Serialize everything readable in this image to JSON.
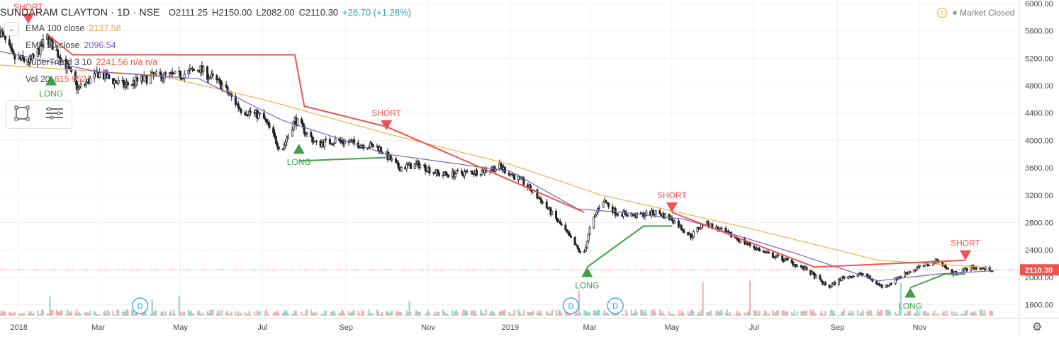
{
  "header": {
    "symbol": "SUNDARAM CLAYTON · 1D · NSE",
    "open": "O2111.25",
    "high": "H2150.00",
    "low": "L2082.00",
    "close": "C2110.30",
    "change": "+26.70 (+1.28%)"
  },
  "indicators": [
    {
      "label": "EMA 100 close",
      "value": "2137.58",
      "color": "#e8a33d"
    },
    {
      "label": "EMA 50 close",
      "value": "2096.54",
      "color": "#7b5fc2"
    },
    {
      "label": "SuperTrend 3 10",
      "value": "2241.56  n/a  n/a",
      "color": "#ef5350"
    },
    {
      "label": "Vol 20",
      "value": "615  952",
      "color": "#ef5350"
    }
  ],
  "status": {
    "market": "Market Closed",
    "warning": "!"
  },
  "icons": {
    "settings": "gear-icon",
    "collapse": "chevron-down-icon",
    "rectangle": "rectangle-tool-icon",
    "menu": "menu-lines-icon"
  },
  "colors": {
    "up": "#26a69a",
    "down": "#ef5350",
    "candle": "#222222",
    "supertrend_up": "#43a047",
    "supertrend_down": "#ef5350",
    "ema50": "#7b5fc2",
    "ema100": "#f0b04a",
    "price_line": "#ef5350"
  },
  "chart_data": {
    "type": "candlestick",
    "title": "SUNDARAM CLAYTON · 1D · NSE",
    "y_axis": {
      "range": [
        1400,
        6050
      ],
      "ticks": [
        "6000.00",
        "5600.00",
        "5200.00",
        "4800.00",
        "4400.00",
        "4000.00",
        "3600.00",
        "3200.00",
        "2800.00",
        "2400.00",
        "2000.00",
        "1600.00"
      ]
    },
    "x_axis": {
      "range": [
        "2017-12-18",
        "2020-01-14"
      ],
      "tick_labels": [
        {
          "date": "2018-01-01",
          "label": "2018"
        },
        {
          "date": "2018-03-01",
          "label": "Mar"
        },
        {
          "date": "2018-05-01",
          "label": "May"
        },
        {
          "date": "2018-07-01",
          "label": "Jul"
        },
        {
          "date": "2018-09-01",
          "label": "Sep"
        },
        {
          "date": "2018-11-01",
          "label": "Nov"
        },
        {
          "date": "2019-01-01",
          "label": "2019"
        },
        {
          "date": "2019-03-01",
          "label": "Mar"
        },
        {
          "date": "2019-05-01",
          "label": "May"
        },
        {
          "date": "2019-07-01",
          "label": "Jul"
        },
        {
          "date": "2019-09-01",
          "label": "Sep"
        },
        {
          "date": "2019-11-01",
          "label": "Nov"
        }
      ]
    },
    "last_price": {
      "value": 2110.3,
      "label": "2110.30"
    },
    "price_path": [
      [
        "2017-12-18",
        5600
      ],
      [
        "2017-12-28",
        5200
      ],
      [
        "2018-01-10",
        5150
      ],
      [
        "2018-01-22",
        5500
      ],
      [
        "2018-02-05",
        5100
      ],
      [
        "2018-02-14",
        4750
      ],
      [
        "2018-03-01",
        4980
      ],
      [
        "2018-03-20",
        4800
      ],
      [
        "2018-04-10",
        4930
      ],
      [
        "2018-05-01",
        4950
      ],
      [
        "2018-05-15",
        5050
      ],
      [
        "2018-06-01",
        4800
      ],
      [
        "2018-06-15",
        4450
      ],
      [
        "2018-07-01",
        4350
      ],
      [
        "2018-07-15",
        3850
      ],
      [
        "2018-07-25",
        4300
      ],
      [
        "2018-08-10",
        3950
      ],
      [
        "2018-08-25",
        4000
      ],
      [
        "2018-09-10",
        3950
      ],
      [
        "2018-09-25",
        3900
      ],
      [
        "2018-10-10",
        3600
      ],
      [
        "2018-10-25",
        3650
      ],
      [
        "2018-11-10",
        3500
      ],
      [
        "2018-11-25",
        3520
      ],
      [
        "2018-12-10",
        3550
      ],
      [
        "2018-12-24",
        3620
      ],
      [
        "2019-01-10",
        3400
      ],
      [
        "2019-01-25",
        3100
      ],
      [
        "2019-02-10",
        2700
      ],
      [
        "2019-02-24",
        2300
      ],
      [
        "2019-03-01",
        2700
      ],
      [
        "2019-03-10",
        3150
      ],
      [
        "2019-03-20",
        2950
      ],
      [
        "2019-04-05",
        2900
      ],
      [
        "2019-04-20",
        2950
      ],
      [
        "2019-05-01",
        2850
      ],
      [
        "2019-05-15",
        2600
      ],
      [
        "2019-05-25",
        2800
      ],
      [
        "2019-06-10",
        2650
      ],
      [
        "2019-06-25",
        2500
      ],
      [
        "2019-07-10",
        2350
      ],
      [
        "2019-07-25",
        2250
      ],
      [
        "2019-08-10",
        2100
      ],
      [
        "2019-08-25",
        1850
      ],
      [
        "2019-09-05",
        2000
      ],
      [
        "2019-09-20",
        2050
      ],
      [
        "2019-10-05",
        1850
      ],
      [
        "2019-10-20",
        2050
      ],
      [
        "2019-11-01",
        2150
      ],
      [
        "2019-11-15",
        2250
      ],
      [
        "2019-11-25",
        2050
      ],
      [
        "2019-12-10",
        2150
      ],
      [
        "2019-12-25",
        2110
      ]
    ],
    "series": [
      {
        "name": "EMA 100 close",
        "points": [
          [
            "2017-12-18",
            5100
          ],
          [
            "2018-04-15",
            4950
          ],
          [
            "2018-07-01",
            4600
          ],
          [
            "2018-10-01",
            4100
          ],
          [
            "2019-01-01",
            3650
          ],
          [
            "2019-03-10",
            3200
          ],
          [
            "2019-07-01",
            2700
          ],
          [
            "2019-10-01",
            2250
          ],
          [
            "2019-12-25",
            2140
          ]
        ]
      },
      {
        "name": "EMA 50 close",
        "points": [
          [
            "2017-12-18",
            5300
          ],
          [
            "2018-03-01",
            5000
          ],
          [
            "2018-05-15",
            4900
          ],
          [
            "2018-07-15",
            4300
          ],
          [
            "2018-10-01",
            3800
          ],
          [
            "2019-01-01",
            3550
          ],
          [
            "2019-02-20",
            3000
          ],
          [
            "2019-03-25",
            2950
          ],
          [
            "2019-05-10",
            2850
          ],
          [
            "2019-08-01",
            2350
          ],
          [
            "2019-10-01",
            1950
          ],
          [
            "2019-11-15",
            2050
          ],
          [
            "2019-12-25",
            2095
          ]
        ]
      },
      {
        "name": "SuperTrend 3 10 (short)",
        "points": [
          [
            "2018-01-22",
            5550
          ],
          [
            "2018-02-10",
            5250
          ],
          [
            "2018-07-25",
            5250
          ],
          [
            "2018-08-01",
            4500
          ],
          [
            "2018-10-01",
            4200
          ],
          [
            "2019-02-25",
            2950
          ]
        ]
      },
      {
        "name": "SuperTrend 3 10 (long)",
        "points": [
          [
            "2018-07-28",
            3700
          ],
          [
            "2018-10-01",
            3750
          ]
        ]
      },
      {
        "name": "SuperTrend 3 10 (long)",
        "points": [
          [
            "2019-02-27",
            2150
          ],
          [
            "2019-04-10",
            2750
          ],
          [
            "2019-05-01",
            2750
          ]
        ]
      },
      {
        "name": "SuperTrend 3 10 (short)",
        "points": [
          [
            "2019-05-01",
            2950
          ],
          [
            "2019-08-15",
            2150
          ],
          [
            "2019-12-05",
            2250
          ]
        ]
      },
      {
        "name": "SuperTrend 3 10 (long)",
        "points": [
          [
            "2019-10-25",
            1850
          ],
          [
            "2019-11-20",
            2050
          ],
          [
            "2019-12-05",
            2050
          ]
        ]
      }
    ],
    "signals": [
      {
        "date": "2018-01-08",
        "label": "SHORT",
        "type": "short",
        "price": 5700
      },
      {
        "date": "2018-01-25",
        "label": "LONG",
        "type": "long",
        "price": 4950
      },
      {
        "date": "2018-07-28",
        "label": "LONG",
        "type": "long",
        "price": 3950
      },
      {
        "date": "2018-10-01",
        "label": "SHORT",
        "type": "short",
        "price": 4150
      },
      {
        "date": "2019-02-27",
        "label": "LONG",
        "type": "long",
        "price": 2150
      },
      {
        "date": "2019-05-01",
        "label": "SHORT",
        "type": "short",
        "price": 2950
      },
      {
        "date": "2019-10-25",
        "label": "LONG",
        "type": "long",
        "price": 1850
      },
      {
        "date": "2019-12-05",
        "label": "SHORT",
        "type": "short",
        "price": 2250
      }
    ],
    "dividend_markers": [
      {
        "date": "2018-04-01",
        "label": "D"
      },
      {
        "date": "2019-02-15",
        "label": "D"
      },
      {
        "date": "2019-03-20",
        "label": "D"
      }
    ],
    "volume_spikes": [
      "2018-01-24",
      "2018-04-10",
      "2018-04-30",
      "2018-05-20",
      "2018-09-15",
      "2018-10-18",
      "2019-01-20",
      "2019-02-21",
      "2019-05-24",
      "2019-06-28",
      "2019-07-20",
      "2019-10-18"
    ]
  }
}
